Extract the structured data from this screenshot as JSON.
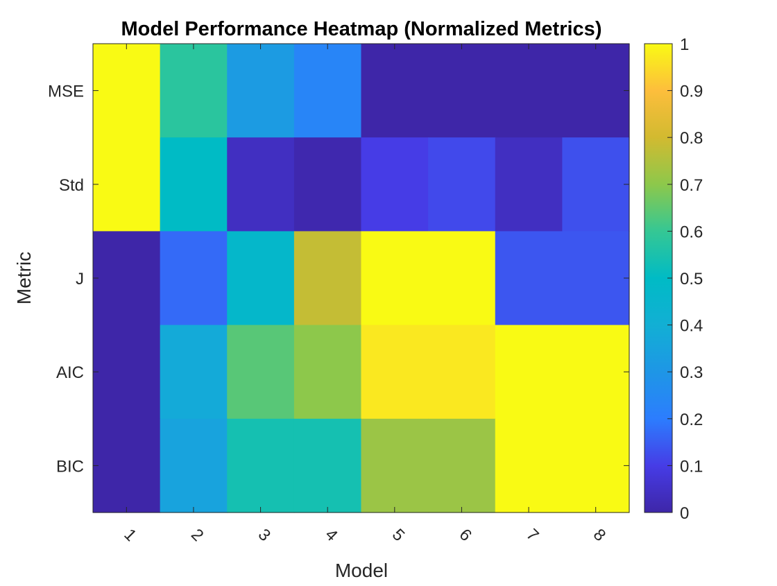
{
  "chart_data": {
    "type": "heatmap",
    "title": "Model Performance Heatmap (Normalized Metrics)",
    "xlabel": "Model",
    "ylabel": "Metric",
    "x_categories": [
      "1",
      "2",
      "3",
      "4",
      "5",
      "6",
      "7",
      "8"
    ],
    "y_categories": [
      "MSE",
      "Std",
      "J",
      "AIC",
      "BIC"
    ],
    "values": [
      [
        1.0,
        0.58,
        0.32,
        0.23,
        0.0,
        0.0,
        0.0,
        0.0
      ],
      [
        1.0,
        0.5,
        0.04,
        0.01,
        0.1,
        0.12,
        0.04,
        0.13
      ],
      [
        0.0,
        0.17,
        0.47,
        0.78,
        1.0,
        1.0,
        0.14,
        0.14
      ],
      [
        0.0,
        0.38,
        0.64,
        0.7,
        0.97,
        0.97,
        1.0,
        1.0
      ],
      [
        0.0,
        0.35,
        0.54,
        0.54,
        0.72,
        0.72,
        1.0,
        1.0
      ]
    ],
    "color_range": [
      0,
      1
    ],
    "colorbar_ticks": [
      "0",
      "0.1",
      "0.2",
      "0.3",
      "0.4",
      "0.5",
      "0.6",
      "0.7",
      "0.8",
      "0.9",
      "1"
    ],
    "colormap": "parula",
    "x_tick_rotation": "45 degrees",
    "grid": false,
    "legend": "colorbar-right"
  }
}
